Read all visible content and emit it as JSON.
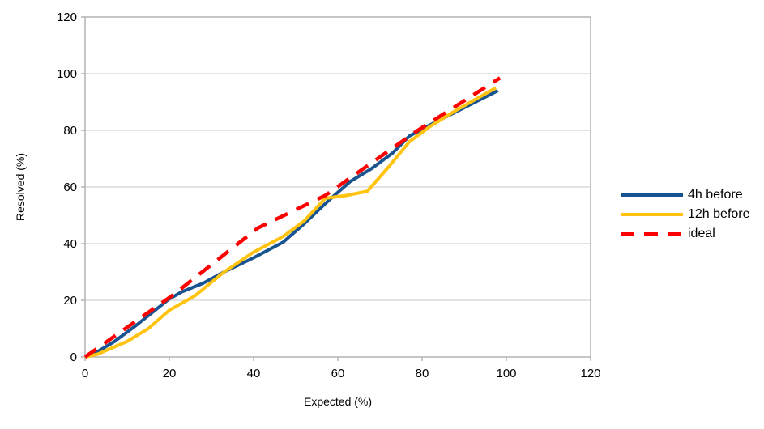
{
  "chart_data": {
    "type": "line",
    "title": "",
    "xlabel": "Expected (%)",
    "ylabel": "Resolved (%)",
    "xlim": [
      0,
      120
    ],
    "ylim": [
      0,
      120
    ],
    "xticks": [
      0,
      20,
      40,
      60,
      80,
      100,
      120
    ],
    "yticks": [
      0,
      20,
      40,
      60,
      80,
      100,
      120
    ],
    "grid": "horizontal-only",
    "legend_position": "right-outside",
    "style": {
      "grid_color": "#C9C9C9",
      "frame_color": "#B3B3B3",
      "text_color": "#000000",
      "background": "#FFFFFF"
    },
    "series": [
      {
        "name": "4h before",
        "color": "#1A5490",
        "style": "solid",
        "points": [
          [
            0,
            0
          ],
          [
            2,
            1
          ],
          [
            7,
            5.5
          ],
          [
            12,
            11
          ],
          [
            20,
            20.5
          ],
          [
            23,
            23
          ],
          [
            28,
            26
          ],
          [
            33,
            30
          ],
          [
            40,
            35
          ],
          [
            47,
            40.5
          ],
          [
            52,
            47
          ],
          [
            58,
            55.5
          ],
          [
            63,
            62
          ],
          [
            68,
            66.5
          ],
          [
            73,
            72
          ],
          [
            77,
            78
          ],
          [
            82,
            82
          ],
          [
            88,
            86.5
          ],
          [
            98,
            94
          ]
        ]
      },
      {
        "name": "12h before",
        "color": "#FFC310",
        "style": "solid",
        "points": [
          [
            0,
            0
          ],
          [
            3,
            1
          ],
          [
            10,
            5.5
          ],
          [
            15,
            10
          ],
          [
            20,
            16.5
          ],
          [
            26,
            21.5
          ],
          [
            33,
            30
          ],
          [
            40,
            37
          ],
          [
            47,
            42.5
          ],
          [
            52,
            48
          ],
          [
            57,
            56
          ],
          [
            62,
            57
          ],
          [
            67,
            58.5
          ],
          [
            72,
            67
          ],
          [
            77,
            76
          ],
          [
            82,
            81.5
          ],
          [
            88,
            87
          ],
          [
            97.5,
            95
          ]
        ]
      },
      {
        "name": "ideal",
        "color": "#FF0000",
        "style": "dashed",
        "points": [
          [
            0,
            0
          ],
          [
            21,
            22
          ],
          [
            41,
            45.5
          ],
          [
            57,
            57
          ],
          [
            79,
            80
          ],
          [
            98.5,
            98.5
          ]
        ]
      }
    ]
  },
  "legend": {
    "items": [
      "4h before",
      "12h before",
      "ideal"
    ]
  }
}
